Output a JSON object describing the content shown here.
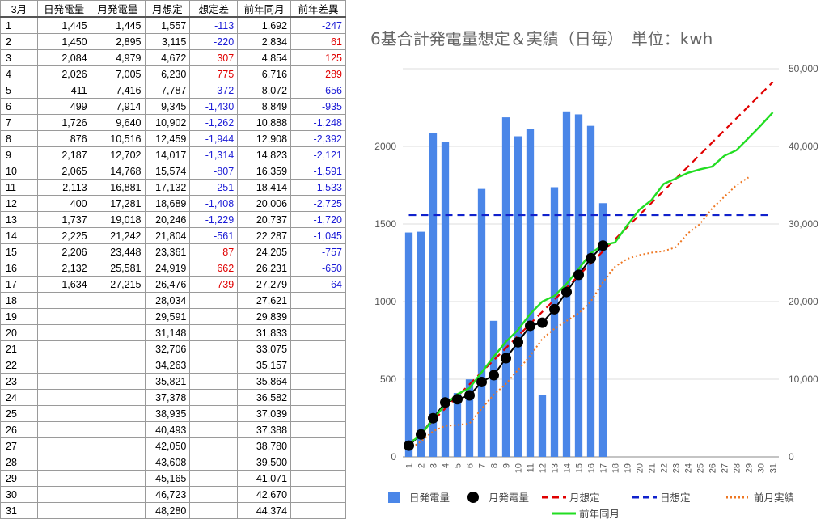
{
  "sheet": {
    "headers": [
      "3月",
      "日発電量",
      "月発電量",
      "月想定",
      "想定差",
      "前年同月",
      "前年差異"
    ],
    "rows": [
      [
        "1",
        "1,445",
        "1,445",
        "1,557",
        "-113",
        "1,692",
        "-247"
      ],
      [
        "2",
        "1,450",
        "2,895",
        "3,115",
        "-220",
        "2,834",
        "61"
      ],
      [
        "3",
        "2,084",
        "4,979",
        "4,672",
        "307",
        "4,854",
        "125"
      ],
      [
        "4",
        "2,026",
        "7,005",
        "6,230",
        "775",
        "6,716",
        "289"
      ],
      [
        "5",
        "411",
        "7,416",
        "7,787",
        "-372",
        "8,072",
        "-656"
      ],
      [
        "6",
        "499",
        "7,914",
        "9,345",
        "-1,430",
        "8,849",
        "-935"
      ],
      [
        "7",
        "1,726",
        "9,640",
        "10,902",
        "-1,262",
        "10,888",
        "-1,248"
      ],
      [
        "8",
        "876",
        "10,516",
        "12,459",
        "-1,944",
        "12,908",
        "-2,392"
      ],
      [
        "9",
        "2,187",
        "12,702",
        "14,017",
        "-1,314",
        "14,823",
        "-2,121"
      ],
      [
        "10",
        "2,065",
        "14,768",
        "15,574",
        "-807",
        "16,359",
        "-1,591"
      ],
      [
        "11",
        "2,113",
        "16,881",
        "17,132",
        "-251",
        "18,414",
        "-1,533"
      ],
      [
        "12",
        "400",
        "17,281",
        "18,689",
        "-1,408",
        "20,006",
        "-2,725"
      ],
      [
        "13",
        "1,737",
        "19,018",
        "20,246",
        "-1,229",
        "20,737",
        "-1,720"
      ],
      [
        "14",
        "2,225",
        "21,242",
        "21,804",
        "-561",
        "22,287",
        "-1,045"
      ],
      [
        "15",
        "2,206",
        "23,448",
        "23,361",
        "87",
        "24,205",
        "-757"
      ],
      [
        "16",
        "2,132",
        "25,581",
        "24,919",
        "662",
        "26,231",
        "-650"
      ],
      [
        "17",
        "1,634",
        "27,215",
        "26,476",
        "739",
        "27,279",
        "-64"
      ],
      [
        "18",
        "",
        "",
        "28,034",
        "",
        "27,621",
        ""
      ],
      [
        "19",
        "",
        "",
        "29,591",
        "",
        "29,839",
        ""
      ],
      [
        "20",
        "",
        "",
        "31,148",
        "",
        "31,833",
        ""
      ],
      [
        "21",
        "",
        "",
        "32,706",
        "",
        "33,075",
        ""
      ],
      [
        "22",
        "",
        "",
        "34,263",
        "",
        "35,157",
        ""
      ],
      [
        "23",
        "",
        "",
        "35,821",
        "",
        "35,864",
        ""
      ],
      [
        "24",
        "",
        "",
        "37,378",
        "",
        "36,582",
        ""
      ],
      [
        "25",
        "",
        "",
        "38,935",
        "",
        "37,039",
        ""
      ],
      [
        "26",
        "",
        "",
        "40,493",
        "",
        "37,388",
        ""
      ],
      [
        "27",
        "",
        "",
        "42,050",
        "",
        "38,780",
        ""
      ],
      [
        "28",
        "",
        "",
        "43,608",
        "",
        "39,500",
        ""
      ],
      [
        "29",
        "",
        "",
        "45,165",
        "",
        "41,071",
        ""
      ],
      [
        "30",
        "",
        "",
        "46,723",
        "",
        "42,670",
        ""
      ],
      [
        "31",
        "",
        "",
        "48,280",
        "",
        "44,374",
        ""
      ]
    ],
    "colors": {
      "negative": "#1c1cd6",
      "positive": "#e00000"
    }
  },
  "chart_data": {
    "type": "bar",
    "title": "6基合計発電量想定＆実績（日毎）　単位：kwh",
    "categories": [
      "1",
      "2",
      "3",
      "4",
      "5",
      "6",
      "7",
      "8",
      "9",
      "10",
      "11",
      "12",
      "13",
      "14",
      "15",
      "16",
      "17",
      "18",
      "19",
      "20",
      "21",
      "22",
      "23",
      "24",
      "25",
      "26",
      "27",
      "28",
      "29",
      "30",
      "31"
    ],
    "y_left": {
      "ticks": [
        "0",
        "500",
        "1000",
        "1500",
        "2000"
      ],
      "range": [
        0,
        2500
      ]
    },
    "y_right": {
      "ticks": [
        "0",
        "10,000",
        "20,000",
        "30,000",
        "40,000",
        "50,000"
      ],
      "range": [
        0,
        50000
      ]
    },
    "grid": true,
    "legend_position": "bottom",
    "series": [
      {
        "name": "日発電量",
        "type": "bar",
        "axis": "left",
        "color": "#4a86e8",
        "values": [
          1445,
          1450,
          2084,
          2026,
          411,
          499,
          1726,
          876,
          2187,
          2065,
          2113,
          400,
          1737,
          2225,
          2206,
          2132,
          1634,
          null,
          null,
          null,
          null,
          null,
          null,
          null,
          null,
          null,
          null,
          null,
          null,
          null,
          null
        ]
      },
      {
        "name": "月発電量",
        "type": "line-marker",
        "axis": "right",
        "color": "#000000",
        "values": [
          1445,
          2895,
          4979,
          7005,
          7416,
          7914,
          9640,
          10516,
          12702,
          14768,
          16881,
          17281,
          19018,
          21242,
          23448,
          25581,
          27215,
          null,
          null,
          null,
          null,
          null,
          null,
          null,
          null,
          null,
          null,
          null,
          null,
          null,
          null
        ]
      },
      {
        "name": "月想定",
        "type": "line-dashed",
        "axis": "right",
        "color": "#e00000",
        "values": [
          1557,
          3115,
          4672,
          6230,
          7787,
          9345,
          10902,
          12459,
          14017,
          15574,
          17132,
          18689,
          20246,
          21804,
          23361,
          24919,
          26476,
          28034,
          29591,
          31148,
          32706,
          34263,
          35821,
          37378,
          38935,
          40493,
          42050,
          43608,
          45165,
          46723,
          48280
        ]
      },
      {
        "name": "日想定",
        "type": "line-dashed",
        "axis": "left",
        "color": "#1122cc",
        "values": [
          1557,
          1557,
          1557,
          1557,
          1557,
          1557,
          1557,
          1557,
          1557,
          1557,
          1557,
          1557,
          1557,
          1557,
          1557,
          1557,
          1557,
          1557,
          1557,
          1557,
          1557,
          1557,
          1557,
          1557,
          1557,
          1557,
          1557,
          1557,
          1557,
          1557,
          1557
        ]
      },
      {
        "name": "前月実績",
        "type": "line-dotted",
        "axis": "right",
        "color": "#ee7722",
        "values": [
          900,
          2000,
          3300,
          4000,
          4100,
          4300,
          6200,
          8000,
          9400,
          11200,
          13000,
          15200,
          16500,
          17500,
          18500,
          20000,
          22500,
          24500,
          25500,
          26000,
          26300,
          26500,
          27000,
          28800,
          30000,
          32000,
          33500,
          35000,
          36000,
          null,
          null
        ]
      },
      {
        "name": "前年同月",
        "type": "line",
        "axis": "right",
        "color": "#22dd22",
        "values": [
          1692,
          2834,
          4854,
          6716,
          8072,
          8849,
          10888,
          12908,
          14823,
          16359,
          18414,
          20006,
          20737,
          22287,
          24205,
          26231,
          27279,
          27621,
          29839,
          31833,
          33075,
          35157,
          35864,
          36582,
          37039,
          37388,
          38780,
          39500,
          41071,
          42670,
          44374
        ]
      }
    ]
  }
}
